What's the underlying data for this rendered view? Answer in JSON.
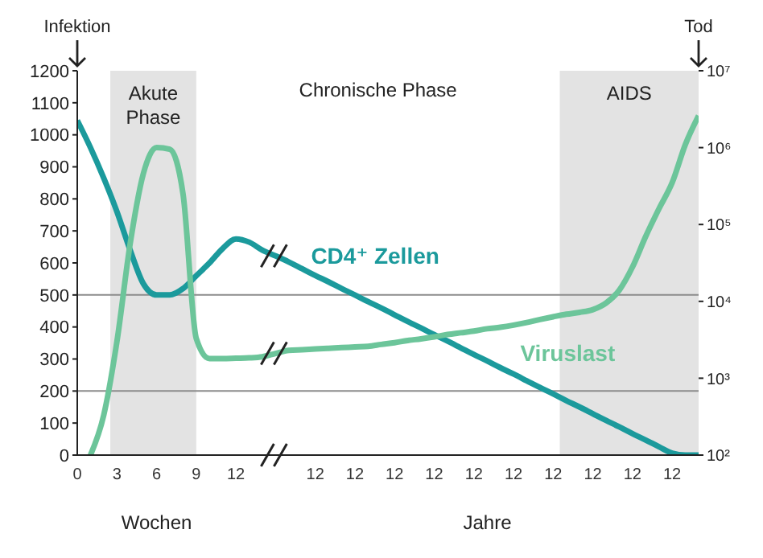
{
  "chart_data": {
    "type": "line",
    "ylim": [
      0,
      1200
    ],
    "yticks": [
      0,
      100,
      200,
      300,
      400,
      500,
      600,
      700,
      800,
      900,
      1000,
      1100,
      1200
    ],
    "categories": [
      "0",
      null,
      null,
      "3",
      null,
      null,
      "6",
      null,
      null,
      "9",
      null,
      null,
      "12",
      null,
      null,
      null,
      null,
      null,
      "12",
      null,
      null,
      "12",
      null,
      null,
      "12",
      null,
      null,
      "12",
      null,
      null,
      "12",
      null,
      null,
      "12",
      null,
      null,
      "12",
      null,
      null,
      "12",
      null,
      null,
      "12",
      null,
      null,
      "12",
      null,
      null
    ],
    "y2lim": [
      100,
      10000000
    ],
    "y2ticks": [
      {
        "value": 100,
        "label": "10²"
      },
      {
        "value": 1000,
        "label": "10³"
      },
      {
        "value": 10000,
        "label": "10⁴"
      },
      {
        "value": 100000,
        "label": "10⁵"
      },
      {
        "value": 1000000,
        "label": "10⁶"
      },
      {
        "value": 10000000,
        "label": "10⁷"
      }
    ],
    "log": "y2",
    "marker": "none",
    "line_style": "solid",
    "series": [
      {
        "name": "CD4⁺ Zellen",
        "color": "#1b9a9c",
        "values": [
          1045,
          960,
          865,
          760,
          640,
          535,
          500,
          500,
          520,
          560,
          600,
          645,
          675,
          665,
          640,
          622,
          603,
          582,
          561,
          541,
          520,
          500,
          479,
          459,
          438,
          417,
          397,
          376,
          356,
          335,
          314,
          294,
          273,
          253,
          232,
          211,
          191,
          170,
          150,
          129,
          108,
          88,
          67,
          47,
          26,
          6,
          0,
          0
        ]
      },
      {
        "name": "Viruslast",
        "color": "#6cc59a",
        "axis": "y2",
        "values": [
          null,
          100,
          330,
          3000,
          56000,
          460000,
          1000000,
          950000,
          250000,
          3300,
          1800,
          1800,
          1820,
          1840,
          1900,
          2100,
          2300,
          2350,
          2400,
          2450,
          2500,
          2550,
          2600,
          2750,
          2900,
          3100,
          3250,
          3450,
          3700,
          3900,
          4100,
          4400,
          4600,
          4900,
          5300,
          5800,
          6300,
          6800,
          7200,
          7800,
          9500,
          14000,
          28000,
          70000,
          160000,
          350000,
          1100000,
          2600000
        ]
      }
    ],
    "ref_lines": [
      {
        "axis": "y",
        "value": 500,
        "color": "#8c8c8c"
      },
      {
        "axis": "y",
        "value": 200,
        "color": "#8c8c8c"
      }
    ],
    "annotations": [
      "Chronische Phase",
      "Wochen",
      "Jahre",
      "Infektion",
      "Tod",
      "Akute Phase",
      "AIDS"
    ]
  }
}
